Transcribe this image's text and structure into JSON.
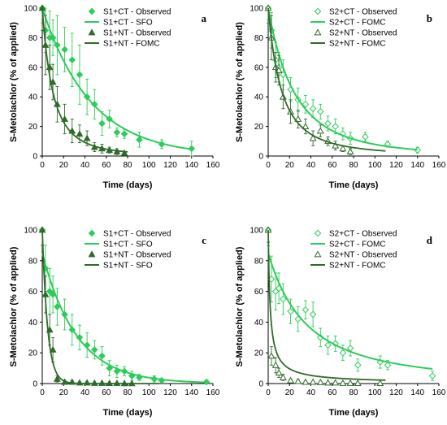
{
  "colors": {
    "ct": "#2ecc5a",
    "nt": "#2f6b2a",
    "axis": "#000000"
  },
  "chart_data": [
    {
      "panel_label": "a",
      "type": "scatter",
      "xlabel": "Time (days)",
      "ylabel": "S-Metolachlor (% of applied)",
      "xlim": [
        0,
        160
      ],
      "ylim": [
        0,
        100
      ],
      "xticks": [
        "0",
        "20",
        "40",
        "60",
        "80",
        "100",
        "120",
        "140",
        "160"
      ],
      "yticks": [
        "0",
        "20",
        "40",
        "60",
        "80",
        "100"
      ],
      "series": [
        {
          "name": "S1+CT - Observed",
          "kind": "points",
          "group": "ct",
          "marker": "diamond-filled",
          "x": [
            0,
            3,
            7,
            10,
            14,
            21,
            28,
            35,
            42,
            49,
            56,
            63,
            70,
            77,
            91,
            112,
            140
          ],
          "y": [
            100,
            85,
            80,
            80,
            75,
            72,
            65,
            55,
            40,
            35,
            22,
            25,
            16,
            15,
            11,
            8,
            5
          ],
          "err": [
            10,
            15,
            18,
            12,
            20,
            15,
            18,
            20,
            12,
            10,
            8,
            6,
            3,
            3,
            5,
            3,
            5
          ]
        },
        {
          "name": "S1+CT - SFO",
          "kind": "line",
          "group": "ct",
          "model": "sfo",
          "params": {
            "c0": 100,
            "k": 0.022
          }
        },
        {
          "name": "S1+NT - Observed",
          "kind": "points",
          "group": "nt",
          "marker": "triangle-filled",
          "x": [
            0,
            3,
            7,
            10,
            14,
            21,
            28,
            35,
            42,
            49,
            56,
            63,
            70,
            77
          ],
          "y": [
            100,
            75,
            60,
            50,
            35,
            25,
            17,
            15,
            12,
            6,
            5,
            4,
            3,
            2
          ],
          "err": [
            15,
            20,
            15,
            12,
            12,
            10,
            8,
            6,
            5,
            3,
            3,
            2,
            2,
            1
          ]
        },
        {
          "name": "S1+NT - FOMC",
          "kind": "line",
          "group": "nt",
          "model": "fomc",
          "params": {
            "c0": 100,
            "alpha": 2.5,
            "beta": 25
          }
        }
      ]
    },
    {
      "panel_label": "b",
      "type": "scatter",
      "xlabel": "Time (days)",
      "ylabel": "S-Metolachlor (% of applied)",
      "xlim": [
        0,
        160
      ],
      "ylim": [
        0,
        100
      ],
      "xticks": [
        "0",
        "20",
        "40",
        "60",
        "80",
        "100",
        "120",
        "140",
        "160"
      ],
      "yticks": [
        "0",
        "20",
        "40",
        "60",
        "80",
        "100"
      ],
      "series": [
        {
          "name": "S2+CT - Observed",
          "kind": "points",
          "group": "ct",
          "marker": "diamond-open",
          "x": [
            0,
            3,
            7,
            10,
            14,
            21,
            28,
            35,
            42,
            49,
            56,
            63,
            70,
            77,
            91,
            112,
            140
          ],
          "y": [
            100,
            85,
            65,
            60,
            55,
            45,
            38,
            35,
            32,
            30,
            22,
            20,
            15,
            12,
            13,
            8,
            4
          ],
          "err": [
            8,
            12,
            12,
            10,
            10,
            8,
            8,
            6,
            6,
            5,
            5,
            5,
            4,
            4,
            3,
            2,
            2
          ]
        },
        {
          "name": "S2+CT - FOMC",
          "kind": "line",
          "group": "ct",
          "model": "fomc",
          "params": {
            "c0": 100,
            "alpha": 3,
            "beta": 75
          }
        },
        {
          "name": "S2+NT - Observed",
          "kind": "points",
          "group": "nt",
          "marker": "triangle-open",
          "x": [
            0,
            3,
            7,
            10,
            14,
            21,
            28,
            35,
            42,
            49,
            56,
            63,
            70,
            77
          ],
          "y": [
            100,
            80,
            60,
            58,
            40,
            30,
            25,
            20,
            12,
            17,
            10,
            7,
            5,
            3
          ],
          "err": [
            10,
            15,
            10,
            10,
            8,
            8,
            6,
            5,
            5,
            4,
            3,
            3,
            2,
            2
          ]
        },
        {
          "name": "S2+NT - FOMC",
          "kind": "line",
          "group": "nt",
          "model": "fomc",
          "params": {
            "c0": 100,
            "alpha": 2,
            "beta": 25
          }
        }
      ]
    },
    {
      "panel_label": "c",
      "type": "scatter",
      "xlabel": "Time (days)",
      "ylabel": "S-Metolachlor (% of applied)",
      "xlim": [
        0,
        160
      ],
      "ylim": [
        0,
        100
      ],
      "xticks": [
        "0",
        "20",
        "40",
        "60",
        "80",
        "100",
        "120",
        "140",
        "160"
      ],
      "yticks": [
        "0",
        "20",
        "40",
        "60",
        "80",
        "100"
      ],
      "series": [
        {
          "name": "S1+CT - Observed",
          "kind": "points",
          "group": "ct",
          "marker": "diamond-filled",
          "x": [
            0,
            3,
            7,
            10,
            14,
            21,
            28,
            35,
            42,
            49,
            56,
            63,
            70,
            77,
            84,
            91,
            105,
            112,
            154
          ],
          "y": [
            100,
            75,
            60,
            58,
            50,
            45,
            35,
            30,
            25,
            22,
            18,
            10,
            8,
            8,
            5,
            4,
            3,
            2,
            1
          ],
          "err": [
            10,
            15,
            15,
            12,
            12,
            10,
            10,
            8,
            8,
            6,
            6,
            5,
            4,
            3,
            3,
            2,
            2,
            1,
            1
          ]
        },
        {
          "name": "S1+CT - SFO",
          "kind": "line",
          "group": "ct",
          "model": "sfo",
          "params": {
            "c0": 85,
            "k": 0.031
          }
        },
        {
          "name": "S1+NT - Observed",
          "kind": "points",
          "group": "nt",
          "marker": "triangle-filled",
          "x": [
            0,
            3,
            7,
            10,
            14,
            21,
            28,
            35,
            42,
            49,
            56,
            63,
            70,
            77,
            84
          ],
          "y": [
            100,
            58,
            35,
            22,
            3,
            1,
            1,
            0.5,
            0.5,
            0.3,
            0.3,
            0.2,
            0.2,
            0.1,
            0.1
          ],
          "err": [
            10,
            12,
            10,
            8,
            2,
            1,
            1,
            0.5,
            0.5,
            0.3,
            0.3,
            0.2,
            0.2,
            0.1,
            0.1
          ]
        },
        {
          "name": "S1+NT - SFO",
          "kind": "line",
          "group": "nt",
          "model": "sfo",
          "params": {
            "c0": 100,
            "k": 0.2
          }
        }
      ]
    },
    {
      "panel_label": "d",
      "type": "scatter",
      "xlabel": "Time (days)",
      "ylabel": "S-Metolachlor (% of applied)",
      "xlim": [
        0,
        160
      ],
      "ylim": [
        0,
        100
      ],
      "xticks": [
        "0",
        "20",
        "40",
        "60",
        "80",
        "100",
        "120",
        "140",
        "160"
      ],
      "yticks": [
        "0",
        "20",
        "40",
        "60",
        "80",
        "100"
      ],
      "series": [
        {
          "name": "S2+CT - Observed",
          "kind": "points",
          "group": "ct",
          "marker": "diamond-open",
          "x": [
            0,
            3,
            7,
            10,
            14,
            21,
            28,
            35,
            42,
            49,
            56,
            63,
            70,
            77,
            84,
            105,
            112,
            154
          ],
          "y": [
            100,
            68,
            60,
            62,
            55,
            47,
            42,
            48,
            45,
            30,
            25,
            26,
            20,
            23,
            12,
            14,
            12,
            5
          ],
          "err": [
            10,
            15,
            12,
            10,
            10,
            8,
            8,
            6,
            8,
            6,
            6,
            5,
            5,
            5,
            4,
            4,
            3,
            3
          ]
        },
        {
          "name": "S2+CT - FOMC",
          "kind": "line",
          "group": "ct",
          "model": "fomc",
          "params": {
            "c0": 85,
            "alpha": 1.8,
            "beta": 65
          }
        },
        {
          "name": "S2+NT - Observed",
          "kind": "points",
          "group": "nt",
          "marker": "triangle-open",
          "x": [
            0,
            3,
            7,
            10,
            14,
            21,
            28,
            35,
            42,
            49,
            56,
            63,
            70,
            77,
            84,
            105
          ],
          "y": [
            100,
            18,
            12,
            7,
            4,
            2,
            1.5,
            1,
            1,
            0.8,
            0.5,
            0.5,
            0.3,
            0.3,
            0.2,
            0.2
          ],
          "err": [
            8,
            6,
            5,
            3,
            2,
            1,
            1,
            0.5,
            0.5,
            0.4,
            0.3,
            0.3,
            0.2,
            0.2,
            0.1,
            0.1
          ]
        },
        {
          "name": "S2+NT - FOMC",
          "kind": "line",
          "group": "nt",
          "model": "fomc",
          "params": {
            "c0": 100,
            "alpha": 0.9,
            "beta": 1.6
          }
        }
      ]
    }
  ]
}
